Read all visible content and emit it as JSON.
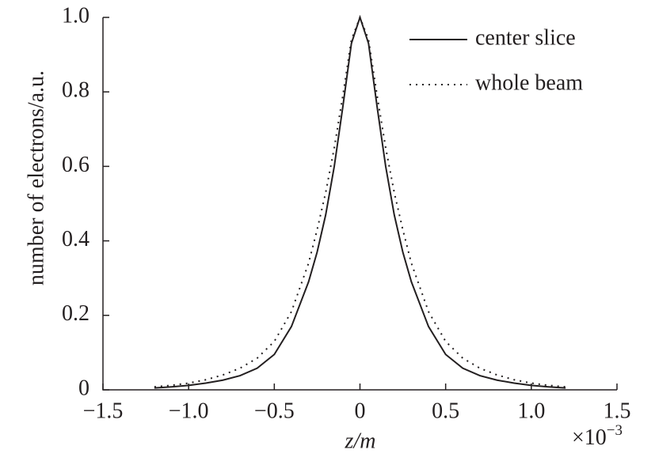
{
  "chart_data": {
    "type": "line",
    "x_label": "z/m",
    "x_multiplier": "×10",
    "x_multiplier_exponent": "−3",
    "y_label": "number of electrons/a.u.",
    "x": [
      -1.2,
      -1.1,
      -1.0,
      -0.9,
      -0.8,
      -0.7,
      -0.6,
      -0.5,
      -0.4,
      -0.3,
      -0.25,
      -0.2,
      -0.15,
      -0.1,
      -0.05,
      0,
      0.05,
      0.1,
      0.15,
      0.2,
      0.25,
      0.3,
      0.4,
      0.5,
      0.6,
      0.7,
      0.8,
      0.9,
      1.0,
      1.1,
      1.2
    ],
    "series": [
      {
        "name": "center slice",
        "color": "#231f20",
        "dash": "solid",
        "values": [
          0.005,
          0.008,
          0.012,
          0.018,
          0.026,
          0.038,
          0.058,
          0.095,
          0.17,
          0.29,
          0.37,
          0.47,
          0.6,
          0.76,
          0.93,
          1.0,
          0.93,
          0.76,
          0.6,
          0.47,
          0.37,
          0.29,
          0.17,
          0.095,
          0.058,
          0.038,
          0.026,
          0.018,
          0.012,
          0.008,
          0.005
        ]
      },
      {
        "name": "whole beam",
        "color": "#231f20",
        "dash": "dotted",
        "values": [
          0.008,
          0.012,
          0.018,
          0.027,
          0.04,
          0.058,
          0.085,
          0.13,
          0.21,
          0.34,
          0.43,
          0.53,
          0.65,
          0.79,
          0.94,
          1.0,
          0.94,
          0.79,
          0.65,
          0.53,
          0.43,
          0.34,
          0.21,
          0.13,
          0.085,
          0.058,
          0.04,
          0.027,
          0.018,
          0.012,
          0.008
        ]
      }
    ],
    "xlim": [
      -1.5,
      1.5
    ],
    "xticks": [
      {
        "value": -1.5,
        "label": "−1.5"
      },
      {
        "value": -1.0,
        "label": "−1.0"
      },
      {
        "value": -0.5,
        "label": "−0.5"
      },
      0,
      0.5,
      {
        "value": 1.0,
        "label": "1.0"
      },
      1.5
    ],
    "ylim": [
      0,
      1.0
    ],
    "yticks": [
      0,
      0.2,
      0.4,
      0.6,
      0.8,
      {
        "value": 1.0,
        "label": "1.0"
      }
    ],
    "legend": "upper right"
  }
}
